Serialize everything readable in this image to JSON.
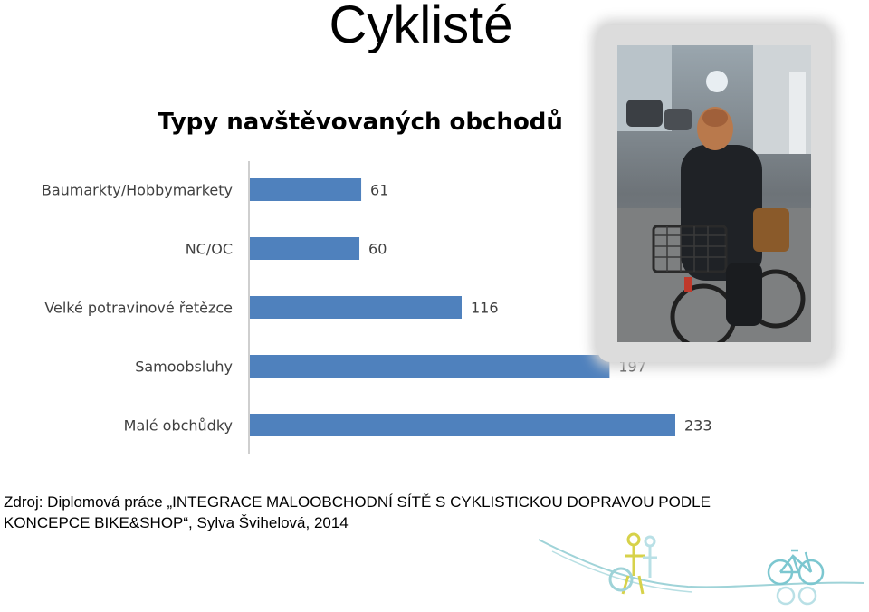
{
  "slide": {
    "title": "Cyklisté",
    "source_line1": "Zdroj: Diplomová práce „INTEGRACE MALOOBCHODNÍ SÍTĚ S CYKLISTICKOU DOPRAVOU PODLE",
    "source_line2": "KONCEPCE BIKE&SHOP“, Sylva Švihelová, 2014"
  },
  "photo": {
    "icon": "cyclist-photo"
  },
  "decoration": {
    "icon": "bike-shop-line-art"
  },
  "chart_data": {
    "type": "bar",
    "orientation": "horizontal",
    "title": "Typy navštěvovaných obchodů",
    "categories": [
      "Baumarkty/Hobbymarkety",
      "NC/OC",
      "Velké potravinové řetězce",
      "Samoobsluhy",
      "Malé obchůdky"
    ],
    "values": [
      61,
      60,
      116,
      197,
      233
    ],
    "data_labels": [
      "61",
      "60",
      "116",
      "197",
      "233"
    ],
    "xlim": [
      0,
      250
    ],
    "grid": false,
    "legend": "none",
    "colors": {
      "bar": "#4f81bd",
      "axis": "#bfbfbf",
      "label": "#404040"
    }
  }
}
